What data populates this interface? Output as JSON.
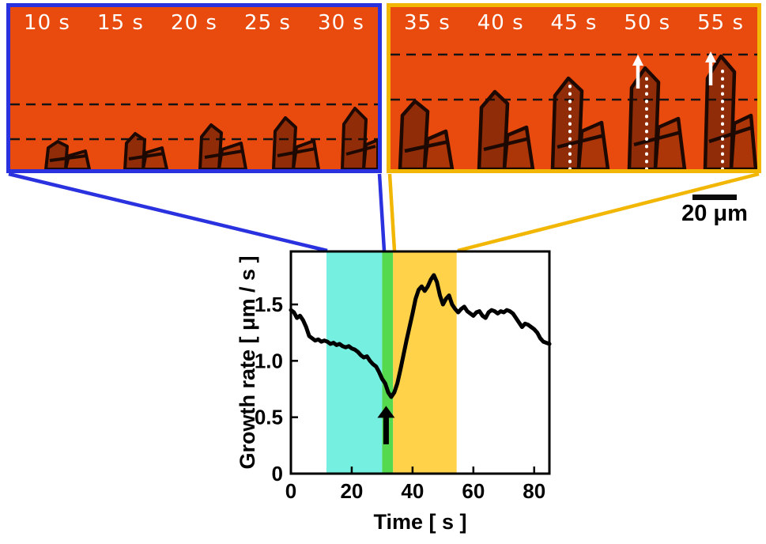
{
  "figure": {
    "left_panel": {
      "description": "optical micrograph sequence, early growth",
      "time_labels": [
        "10 s",
        "15 s",
        "20 s",
        "25 s",
        "30 s"
      ],
      "border_color": "#2a31df",
      "background_color": "#e94a0e"
    },
    "right_panel": {
      "description": "optical micrograph sequence, accelerated growth",
      "time_labels": [
        "35 s",
        "40 s",
        "45 s",
        "50 s",
        "55 s"
      ],
      "border_color": "#f2b705",
      "background_color": "#e94a0e"
    },
    "scale_bar_label": "20 μm"
  },
  "chart_data": {
    "type": "line",
    "title": "",
    "xlabel": "Time [ s ]",
    "ylabel": "Growth rate [ μm / s ]",
    "xlim": [
      0,
      85
    ],
    "ylim": [
      0,
      1.97
    ],
    "xticks": [
      0,
      20,
      40,
      60,
      80
    ],
    "xtick_labels": [
      "0",
      "20",
      "40",
      "60",
      "80"
    ],
    "yticks": [
      0,
      0.5,
      1.0,
      1.5
    ],
    "ytick_labels": [
      "0",
      "0.5",
      "1.0",
      "1.5"
    ],
    "grid": false,
    "legend": null,
    "line_color": "#000000",
    "regions": [
      {
        "name": "cyan-band",
        "x0": 11.7,
        "x1": 30,
        "color": "#74efe0"
      },
      {
        "name": "green-band",
        "x0": 30,
        "x1": 33.6,
        "color": "#55d94e"
      },
      {
        "name": "yellow-band",
        "x0": 33.6,
        "x1": 54.5,
        "color": "#ffd24a"
      }
    ],
    "arrow_annotation": {
      "x": 31.3,
      "y_tail": 0.26,
      "y_head": 0.6
    },
    "series": [
      {
        "name": "growth rate",
        "x": [
          0,
          1,
          2,
          3,
          4,
          5,
          6,
          7,
          8,
          9,
          10,
          11,
          12,
          13,
          14,
          15,
          16,
          17,
          18,
          19,
          20,
          21,
          22,
          23,
          24,
          25,
          26,
          27,
          28,
          29,
          30,
          31,
          32,
          33,
          34,
          35,
          36,
          37,
          38,
          39,
          40,
          41,
          42,
          43,
          44,
          45,
          46,
          47,
          48,
          49,
          50,
          51,
          52,
          53,
          54,
          55,
          56,
          57,
          58,
          59,
          60,
          61,
          62,
          63,
          64,
          65,
          66,
          67,
          68,
          69,
          70,
          71,
          72,
          73,
          74,
          75,
          76,
          77,
          78,
          79,
          80,
          81,
          82,
          83,
          84,
          85
        ],
        "y": [
          1.45,
          1.43,
          1.38,
          1.4,
          1.36,
          1.3,
          1.22,
          1.2,
          1.18,
          1.19,
          1.17,
          1.18,
          1.17,
          1.15,
          1.16,
          1.14,
          1.15,
          1.13,
          1.12,
          1.13,
          1.11,
          1.1,
          1.08,
          1.05,
          1.03,
          1.04,
          1.0,
          0.97,
          0.95,
          0.9,
          0.84,
          0.8,
          0.72,
          0.68,
          0.72,
          0.8,
          0.92,
          1.05,
          1.18,
          1.3,
          1.42,
          1.55,
          1.63,
          1.66,
          1.62,
          1.66,
          1.72,
          1.76,
          1.7,
          1.58,
          1.5,
          1.55,
          1.58,
          1.5,
          1.46,
          1.43,
          1.46,
          1.48,
          1.44,
          1.42,
          1.4,
          1.43,
          1.44,
          1.4,
          1.38,
          1.43,
          1.45,
          1.44,
          1.42,
          1.44,
          1.43,
          1.45,
          1.44,
          1.42,
          1.38,
          1.34,
          1.3,
          1.33,
          1.32,
          1.3,
          1.28,
          1.25,
          1.2,
          1.17,
          1.16,
          1.15
        ]
      }
    ]
  }
}
